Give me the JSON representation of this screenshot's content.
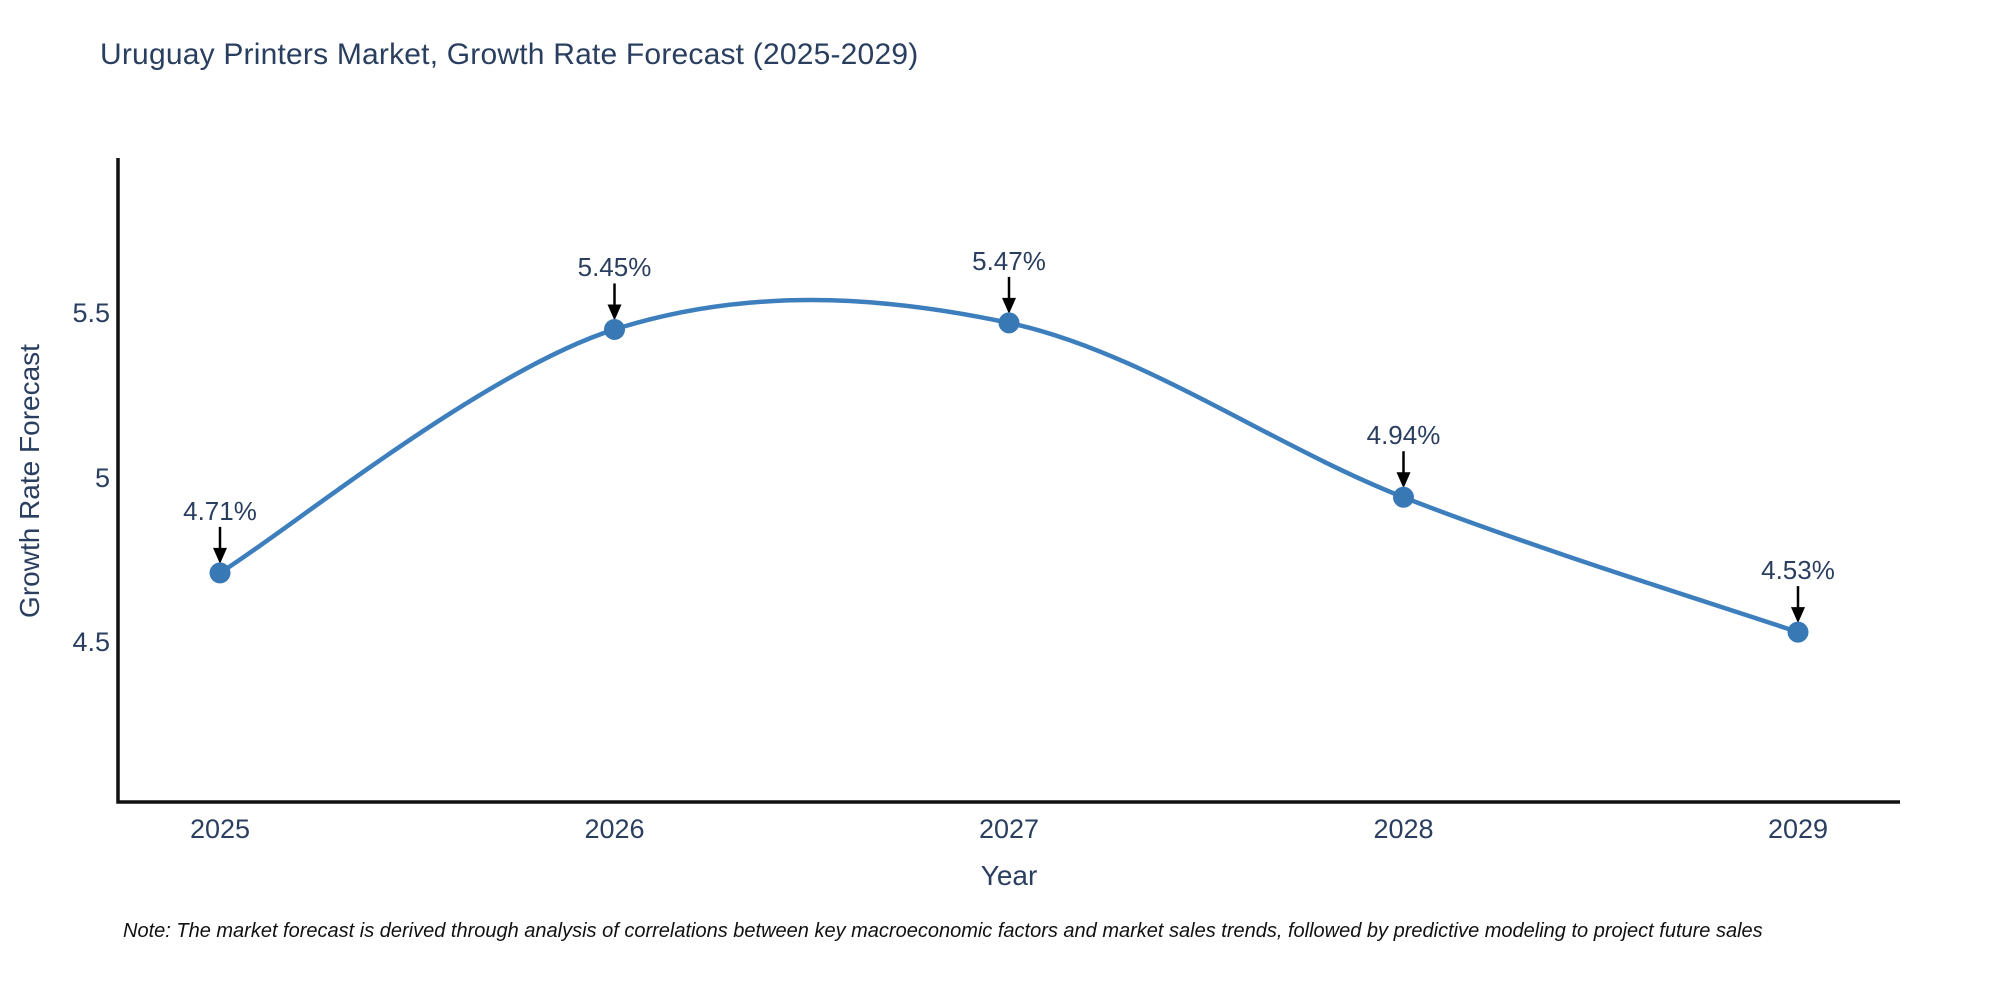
{
  "title": "Uruguay Printers Market, Growth Rate Forecast (2025-2029)",
  "note": "Note: The market forecast is derived through analysis of correlations between key macroeconomic factors and market sales trends, followed by predictive modeling to project future sales",
  "chart_data": {
    "type": "line",
    "line_shape": "spline",
    "title": "Uruguay Printers Market, Growth Rate Forecast (2025-2029)",
    "xlabel": "Year",
    "ylabel": "Growth Rate Forecast",
    "x": [
      2025,
      2026,
      2027,
      2028,
      2029
    ],
    "values": [
      4.71,
      5.45,
      5.47,
      4.94,
      4.53
    ],
    "point_labels": [
      "4.71%",
      "5.45%",
      "5.47%",
      "4.94%",
      "4.53%"
    ],
    "xticks": [
      "2025",
      "2026",
      "2027",
      "2028",
      "2029"
    ],
    "yticks": [
      "4.5",
      "5",
      "5.5"
    ],
    "ytick_values": [
      4.5,
      5.0,
      5.5
    ],
    "ylim": [
      4.01,
      5.96
    ],
    "grid": false,
    "legend": "none",
    "line_color": "#3d7ebd",
    "marker_color": "#3878b4",
    "axis_color": "#111111",
    "text_color": "#2a3f5f",
    "annotation_arrow_color": "#000000"
  }
}
